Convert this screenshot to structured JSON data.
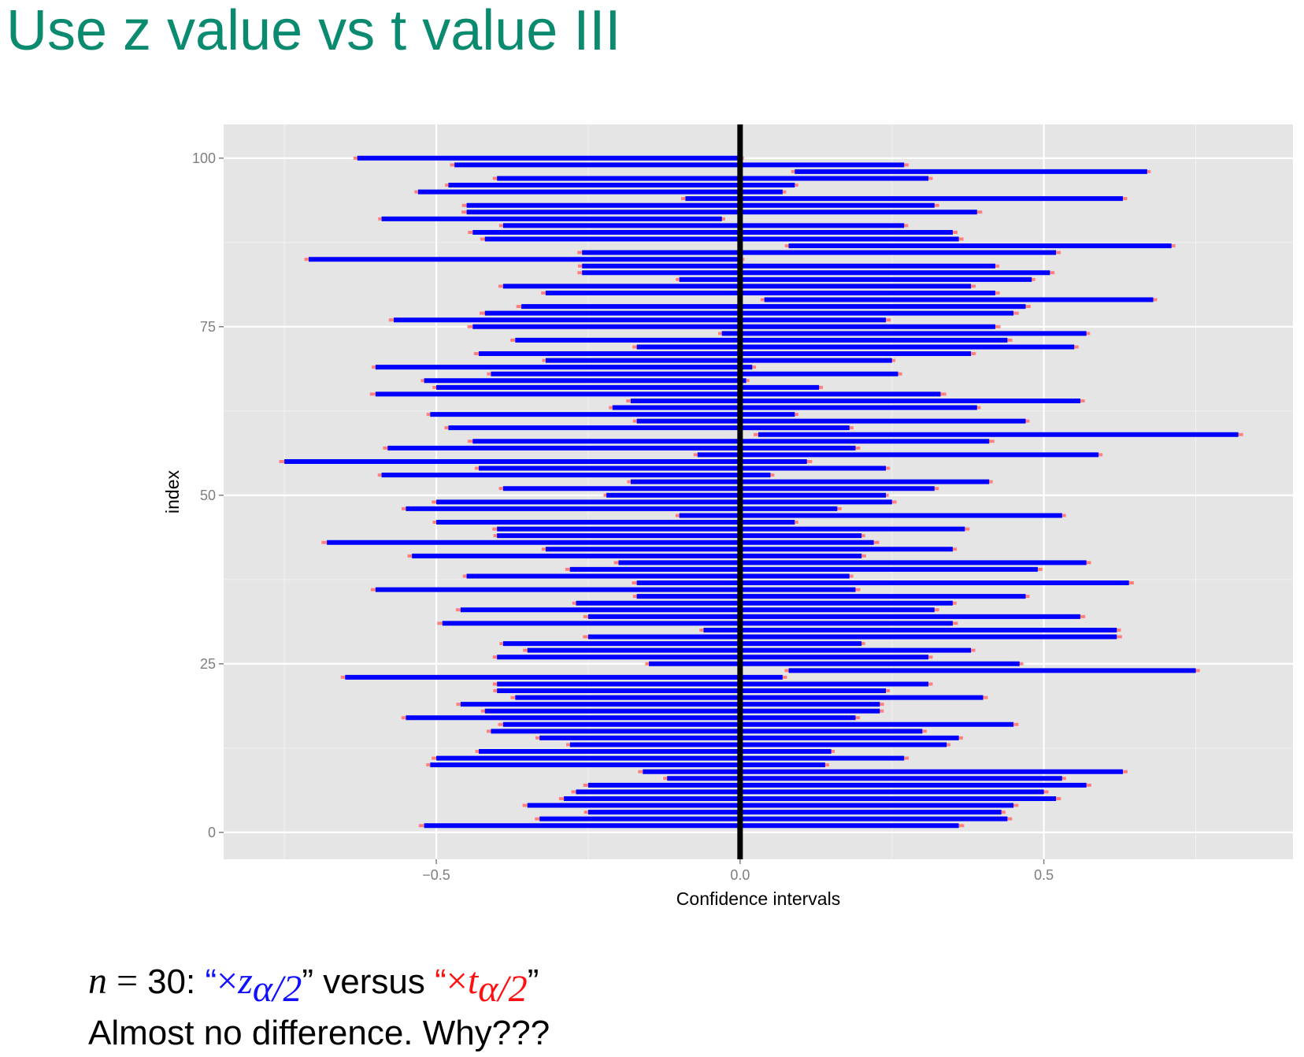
{
  "slide": {
    "title": "Use z value vs t value III",
    "caption": {
      "n_symbol": "n",
      "equals": " = ",
      "n_value": "30: ",
      "open_quote": "“",
      "close_quote": "”",
      "times": "×",
      "z_symbol": "z",
      "t_symbol": "t",
      "subscript": "α/2",
      "versus": " versus ",
      "line2": "Almost no difference. Why???"
    }
  },
  "colors": {
    "title": "#0a8a6e",
    "panel_bg": "#e5e5e5",
    "grid": "#ffffff",
    "z_interval": "#0000ff",
    "t_interval": "#ff8080",
    "reference_line": "#000000",
    "axis_text": "#7f7f7f"
  },
  "chart_data": {
    "type": "interval",
    "title": "",
    "xlabel": "Confidence intervals",
    "ylabel": "index",
    "xlim": [
      -0.85,
      0.91
    ],
    "ylim": [
      -4,
      105
    ],
    "xticks": [
      -0.5,
      0.0,
      0.5
    ],
    "xtick_labels": [
      "−0.5",
      "0.0",
      "0.5"
    ],
    "yticks": [
      0,
      25,
      50,
      75,
      100
    ],
    "ytick_labels": [
      "0",
      "25",
      "50",
      "75",
      "100"
    ],
    "reference_x": 0,
    "grid": true,
    "legend": "none",
    "series": [
      {
        "name": "×z_α/2",
        "note": "inner blue interval"
      },
      {
        "name": "×t_α/2",
        "note": "wider red interval"
      }
    ],
    "intervals": [
      {
        "index": 100,
        "lower": -0.63,
        "upper": 0.0
      },
      {
        "index": 99,
        "lower": -0.47,
        "upper": 0.27
      },
      {
        "index": 98,
        "lower": 0.09,
        "upper": 0.67
      },
      {
        "index": 97,
        "lower": -0.4,
        "upper": 0.31
      },
      {
        "index": 96,
        "lower": -0.48,
        "upper": 0.09
      },
      {
        "index": 95,
        "lower": -0.53,
        "upper": 0.07
      },
      {
        "index": 94,
        "lower": -0.09,
        "upper": 0.63
      },
      {
        "index": 93,
        "lower": -0.45,
        "upper": 0.32
      },
      {
        "index": 92,
        "lower": -0.45,
        "upper": 0.39
      },
      {
        "index": 91,
        "lower": -0.59,
        "upper": -0.03
      },
      {
        "index": 90,
        "lower": -0.39,
        "upper": 0.27
      },
      {
        "index": 89,
        "lower": -0.44,
        "upper": 0.35
      },
      {
        "index": 88,
        "lower": -0.42,
        "upper": 0.36
      },
      {
        "index": 87,
        "lower": 0.08,
        "upper": 0.71
      },
      {
        "index": 86,
        "lower": -0.26,
        "upper": 0.52
      },
      {
        "index": 85,
        "lower": -0.71,
        "upper": 0.0
      },
      {
        "index": 84,
        "lower": -0.26,
        "upper": 0.42
      },
      {
        "index": 83,
        "lower": -0.26,
        "upper": 0.51
      },
      {
        "index": 82,
        "lower": -0.1,
        "upper": 0.48
      },
      {
        "index": 81,
        "lower": -0.39,
        "upper": 0.38
      },
      {
        "index": 80,
        "lower": -0.32,
        "upper": 0.42
      },
      {
        "index": 79,
        "lower": 0.04,
        "upper": 0.68
      },
      {
        "index": 78,
        "lower": -0.36,
        "upper": 0.47
      },
      {
        "index": 77,
        "lower": -0.42,
        "upper": 0.45
      },
      {
        "index": 76,
        "lower": -0.57,
        "upper": 0.24
      },
      {
        "index": 75,
        "lower": -0.44,
        "upper": 0.42
      },
      {
        "index": 74,
        "lower": -0.03,
        "upper": 0.57
      },
      {
        "index": 73,
        "lower": -0.37,
        "upper": 0.44
      },
      {
        "index": 72,
        "lower": -0.17,
        "upper": 0.55
      },
      {
        "index": 71,
        "lower": -0.43,
        "upper": 0.38
      },
      {
        "index": 70,
        "lower": -0.32,
        "upper": 0.25
      },
      {
        "index": 69,
        "lower": -0.6,
        "upper": 0.02
      },
      {
        "index": 68,
        "lower": -0.41,
        "upper": 0.26
      },
      {
        "index": 67,
        "lower": -0.52,
        "upper": 0.01
      },
      {
        "index": 66,
        "lower": -0.5,
        "upper": 0.13
      },
      {
        "index": 65,
        "lower": -0.6,
        "upper": 0.33
      },
      {
        "index": 64,
        "lower": -0.18,
        "upper": 0.56
      },
      {
        "index": 63,
        "lower": -0.21,
        "upper": 0.39
      },
      {
        "index": 62,
        "lower": -0.51,
        "upper": 0.09
      },
      {
        "index": 61,
        "lower": -0.17,
        "upper": 0.47
      },
      {
        "index": 60,
        "lower": -0.48,
        "upper": 0.18
      },
      {
        "index": 59,
        "lower": 0.03,
        "upper": 0.82
      },
      {
        "index": 58,
        "lower": -0.44,
        "upper": 0.41
      },
      {
        "index": 57,
        "lower": -0.58,
        "upper": 0.19
      },
      {
        "index": 56,
        "lower": -0.07,
        "upper": 0.59
      },
      {
        "index": 55,
        "lower": -0.75,
        "upper": 0.11
      },
      {
        "index": 54,
        "lower": -0.43,
        "upper": 0.24
      },
      {
        "index": 53,
        "lower": -0.59,
        "upper": 0.05
      },
      {
        "index": 52,
        "lower": -0.18,
        "upper": 0.41
      },
      {
        "index": 51,
        "lower": -0.39,
        "upper": 0.32
      },
      {
        "index": 50,
        "lower": -0.22,
        "upper": 0.24
      },
      {
        "index": 49,
        "lower": -0.5,
        "upper": 0.25
      },
      {
        "index": 48,
        "lower": -0.55,
        "upper": 0.16
      },
      {
        "index": 47,
        "lower": -0.1,
        "upper": 0.53
      },
      {
        "index": 46,
        "lower": -0.5,
        "upper": 0.09
      },
      {
        "index": 45,
        "lower": -0.4,
        "upper": 0.37
      },
      {
        "index": 44,
        "lower": -0.4,
        "upper": 0.2
      },
      {
        "index": 43,
        "lower": -0.68,
        "upper": 0.22
      },
      {
        "index": 42,
        "lower": -0.32,
        "upper": 0.35
      },
      {
        "index": 41,
        "lower": -0.54,
        "upper": 0.2
      },
      {
        "index": 40,
        "lower": -0.2,
        "upper": 0.57
      },
      {
        "index": 39,
        "lower": -0.28,
        "upper": 0.49
      },
      {
        "index": 38,
        "lower": -0.45,
        "upper": 0.18
      },
      {
        "index": 37,
        "lower": -0.17,
        "upper": 0.64
      },
      {
        "index": 36,
        "lower": -0.6,
        "upper": 0.19
      },
      {
        "index": 35,
        "lower": -0.17,
        "upper": 0.47
      },
      {
        "index": 34,
        "lower": -0.27,
        "upper": 0.35
      },
      {
        "index": 33,
        "lower": -0.46,
        "upper": 0.32
      },
      {
        "index": 32,
        "lower": -0.25,
        "upper": 0.56
      },
      {
        "index": 31,
        "lower": -0.49,
        "upper": 0.35
      },
      {
        "index": 30,
        "lower": -0.06,
        "upper": 0.62
      },
      {
        "index": 29,
        "lower": -0.25,
        "upper": 0.62
      },
      {
        "index": 28,
        "lower": -0.39,
        "upper": 0.2
      },
      {
        "index": 27,
        "lower": -0.35,
        "upper": 0.38
      },
      {
        "index": 26,
        "lower": -0.4,
        "upper": 0.31
      },
      {
        "index": 25,
        "lower": -0.15,
        "upper": 0.46
      },
      {
        "index": 24,
        "lower": 0.08,
        "upper": 0.75
      },
      {
        "index": 23,
        "lower": -0.65,
        "upper": 0.07
      },
      {
        "index": 22,
        "lower": -0.4,
        "upper": 0.31
      },
      {
        "index": 21,
        "lower": -0.4,
        "upper": 0.24
      },
      {
        "index": 20,
        "lower": -0.37,
        "upper": 0.4
      },
      {
        "index": 19,
        "lower": -0.46,
        "upper": 0.23
      },
      {
        "index": 18,
        "lower": -0.42,
        "upper": 0.23
      },
      {
        "index": 17,
        "lower": -0.55,
        "upper": 0.19
      },
      {
        "index": 16,
        "lower": -0.39,
        "upper": 0.45
      },
      {
        "index": 15,
        "lower": -0.41,
        "upper": 0.3
      },
      {
        "index": 14,
        "lower": -0.33,
        "upper": 0.36
      },
      {
        "index": 13,
        "lower": -0.28,
        "upper": 0.34
      },
      {
        "index": 12,
        "lower": -0.43,
        "upper": 0.15
      },
      {
        "index": 11,
        "lower": -0.5,
        "upper": 0.27
      },
      {
        "index": 10,
        "lower": -0.51,
        "upper": 0.14
      },
      {
        "index": 9,
        "lower": -0.16,
        "upper": 0.63
      },
      {
        "index": 8,
        "lower": -0.12,
        "upper": 0.53
      },
      {
        "index": 7,
        "lower": -0.25,
        "upper": 0.57
      },
      {
        "index": 6,
        "lower": -0.27,
        "upper": 0.5
      },
      {
        "index": 5,
        "lower": -0.29,
        "upper": 0.52
      },
      {
        "index": 4,
        "lower": -0.35,
        "upper": 0.45
      },
      {
        "index": 3,
        "lower": -0.25,
        "upper": 0.43
      },
      {
        "index": 2,
        "lower": -0.33,
        "upper": 0.44
      },
      {
        "index": 1,
        "lower": -0.52,
        "upper": 0.36
      }
    ],
    "t_extra_fraction": 0.02
  }
}
